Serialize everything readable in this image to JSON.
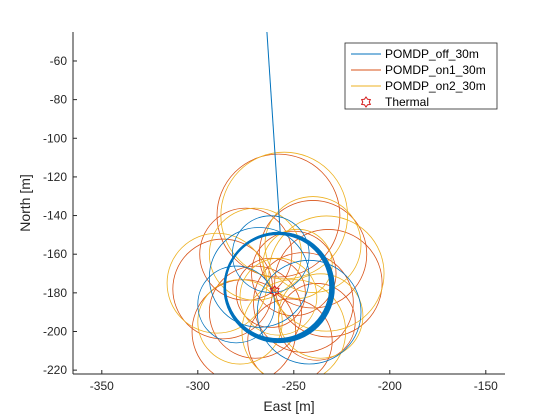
{
  "chart_data": {
    "type": "line",
    "title": "",
    "xlabel": "East [m]",
    "ylabel": "North [m]",
    "xlim": [
      -365,
      -140
    ],
    "ylim": [
      -222,
      -45
    ],
    "xticks": [
      -350,
      -300,
      -250,
      -200,
      -150
    ],
    "yticks": [
      -60,
      -80,
      -100,
      -120,
      -140,
      -160,
      -180,
      -200,
      -220
    ],
    "grid": false,
    "legend_position": "top-right",
    "series": [
      {
        "name": "POMDP_off_30m",
        "color": "#0072BD",
        "approach": {
          "x": [
            -264,
            -257
          ],
          "y": [
            -45,
            -150
          ]
        },
        "orbits": [
          {
            "cx": -258,
            "cy": -177,
            "r": 28,
            "laps": 14
          },
          {
            "cx": -262,
            "cy": -160,
            "r": 20,
            "laps": 1
          },
          {
            "cx": -242,
            "cy": -190,
            "r": 27,
            "laps": 1
          },
          {
            "cx": -280,
            "cy": -186,
            "r": 20,
            "laps": 1
          },
          {
            "cx": -268,
            "cy": -172,
            "r": 26,
            "laps": 1
          }
        ]
      },
      {
        "name": "POMDP_on1_30m",
        "color": "#D95319",
        "orbits": [
          {
            "cx": -258,
            "cy": -140,
            "r": 32
          },
          {
            "cx": -232,
            "cy": -175,
            "r": 28
          },
          {
            "cx": -276,
            "cy": -200,
            "r": 27
          },
          {
            "cx": -240,
            "cy": -160,
            "r": 28
          },
          {
            "cx": -275,
            "cy": -160,
            "r": 24
          },
          {
            "cx": -252,
            "cy": -205,
            "r": 22
          },
          {
            "cx": -287,
            "cy": -178,
            "r": 26
          },
          {
            "cx": -238,
            "cy": -195,
            "r": 20
          },
          {
            "cx": -262,
            "cy": -180,
            "r": 18
          },
          {
            "cx": -250,
            "cy": -170,
            "r": 22
          },
          {
            "cx": -270,
            "cy": -190,
            "r": 24
          },
          {
            "cx": -245,
            "cy": -185,
            "r": 26
          }
        ]
      },
      {
        "name": "POMDP_on2_30m",
        "color": "#EDB120",
        "orbits": [
          {
            "cx": -255,
            "cy": -140,
            "r": 33
          },
          {
            "cx": -233,
            "cy": -170,
            "r": 30
          },
          {
            "cx": -290,
            "cy": -175,
            "r": 26
          },
          {
            "cx": -250,
            "cy": -200,
            "r": 27
          },
          {
            "cx": -278,
            "cy": -195,
            "r": 22
          },
          {
            "cx": -240,
            "cy": -155,
            "r": 25
          },
          {
            "cx": -270,
            "cy": -160,
            "r": 24
          },
          {
            "cx": -258,
            "cy": -182,
            "r": 20
          },
          {
            "cx": -236,
            "cy": -192,
            "r": 22
          },
          {
            "cx": -248,
            "cy": -165,
            "r": 18
          }
        ]
      }
    ],
    "thermal": {
      "name": "Thermal",
      "x": -260,
      "y": -179,
      "marker": "hexagram",
      "color": "#D41C1C"
    }
  }
}
